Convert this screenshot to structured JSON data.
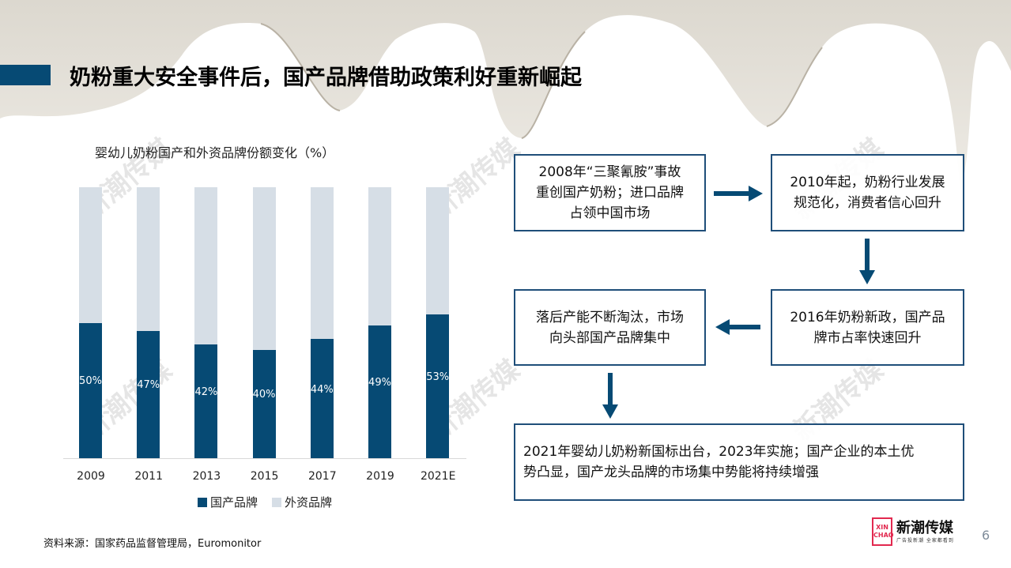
{
  "header": {
    "title": "奶粉重大安全事件后，国产品牌借助政策利好重新崛起"
  },
  "chart": {
    "title": "婴幼儿奶粉国产和外资品牌份额变化（%）",
    "legend": [
      "国产品牌",
      "外资品牌"
    ]
  },
  "chart_data": {
    "type": "bar",
    "stacked": true,
    "title": "婴幼儿奶粉国产和外资品牌份额变化（%）",
    "categories": [
      "2009",
      "2011",
      "2013",
      "2015",
      "2017",
      "2019",
      "2021E"
    ],
    "series": [
      {
        "name": "国产品牌",
        "color": "#064a74",
        "values": [
          50,
          47,
          42,
          40,
          44,
          49,
          53
        ]
      },
      {
        "name": "外资品牌",
        "color": "#d6dee6",
        "values": [
          50,
          53,
          58,
          60,
          56,
          51,
          47
        ]
      }
    ],
    "labels": [
      "50%",
      "47%",
      "42%",
      "40%",
      "44%",
      "49%",
      "53%"
    ],
    "xlabel": "",
    "ylabel": "",
    "ylim": [
      0,
      100
    ],
    "grid": false,
    "legend_position": "bottom"
  },
  "flow": {
    "box1": [
      "2008年“三聚氰胺”事故",
      "重创国产奶粉；进口品牌",
      "占领中国市场"
    ],
    "box2": [
      "2010年起，奶粉行业发展",
      "规范化，消费者信心回升"
    ],
    "box3": [
      "2016年奶粉新政，国产品",
      "牌市占率快速回升"
    ],
    "box4": [
      "落后产能不断淘汰，市场",
      "向头部国产品牌集中"
    ],
    "box5": [
      "2021年婴幼儿奶粉新国标出台，2023年实施；国产企业的本土优",
      "势凸显，国产龙头品牌的市场集中势能将持续增强"
    ]
  },
  "footer": {
    "source": "资料来源：国家药品监督管理局，Euromonitor",
    "logo_main": "新潮传媒",
    "logo_sub": "广告投新潮 全家都看到",
    "logo_badge": [
      "XIN",
      "CHAO"
    ],
    "page_number": "6"
  },
  "watermark": {
    "text": "新潮传媒"
  },
  "colors": {
    "accent": "#064a74",
    "box_border": "#1f4e79",
    "foreign_bar": "#d6dee6",
    "logo_red": "#e2294f"
  }
}
